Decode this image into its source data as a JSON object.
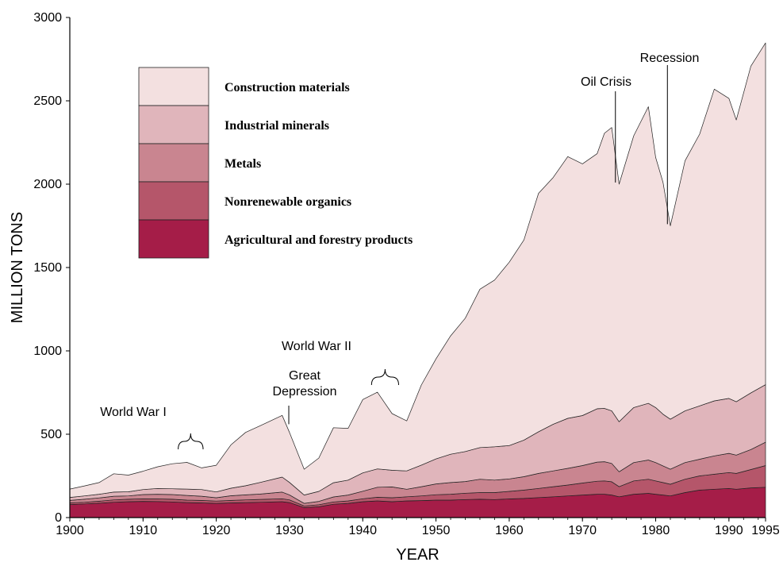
{
  "chart_data": {
    "type": "area",
    "stacked": true,
    "title": "",
    "xlabel": "YEAR",
    "ylabel": "MILLION TONS",
    "xlim": [
      1900,
      1995
    ],
    "ylim": [
      0,
      3000
    ],
    "xticks": [
      1900,
      1910,
      1920,
      1930,
      1940,
      1950,
      1960,
      1970,
      1980,
      1990,
      1995
    ],
    "yticks": [
      0,
      500,
      1000,
      1500,
      2000,
      2500,
      3000
    ],
    "grid": false,
    "legend_position": "top-left",
    "x": [
      1900,
      1902,
      1904,
      1906,
      1908,
      1910,
      1912,
      1914,
      1916,
      1918,
      1920,
      1922,
      1924,
      1926,
      1929,
      1930,
      1932,
      1934,
      1936,
      1938,
      1940,
      1942,
      1944,
      1946,
      1948,
      1950,
      1952,
      1954,
      1956,
      1958,
      1960,
      1962,
      1964,
      1966,
      1968,
      1970,
      1972,
      1973,
      1974,
      1975,
      1977,
      1979,
      1980,
      1981,
      1982,
      1984,
      1986,
      1988,
      1990,
      1991,
      1993,
      1995
    ],
    "series": [
      {
        "name": "Agricultural and forestry products",
        "color": "#a51d48",
        "values": [
          78,
          82,
          86,
          92,
          95,
          97,
          96,
          94,
          90,
          88,
          85,
          88,
          90,
          92,
          95,
          90,
          60,
          65,
          80,
          85,
          95,
          100,
          95,
          100,
          102,
          105,
          105,
          108,
          110,
          108,
          112,
          115,
          120,
          125,
          130,
          135,
          140,
          140,
          135,
          125,
          140,
          145,
          140,
          135,
          130,
          150,
          165,
          170,
          175,
          170,
          178,
          182
        ]
      },
      {
        "name": "Nonrenewable organics",
        "color": "#b5566a",
        "values": [
          10,
          10,
          12,
          14,
          15,
          16,
          16,
          16,
          15,
          15,
          14,
          15,
          16,
          17,
          18,
          16,
          10,
          12,
          14,
          15,
          18,
          22,
          24,
          25,
          28,
          32,
          35,
          38,
          40,
          42,
          45,
          50,
          55,
          60,
          65,
          72,
          78,
          80,
          80,
          60,
          80,
          85,
          80,
          75,
          70,
          80,
          85,
          90,
          95,
          95,
          110,
          130
        ]
      },
      {
        "name": "Metals",
        "color": "#c98590",
        "values": [
          15,
          18,
          20,
          22,
          20,
          25,
          28,
          28,
          28,
          25,
          20,
          28,
          30,
          32,
          40,
          30,
          15,
          20,
          30,
          35,
          45,
          60,
          65,
          45,
          55,
          65,
          70,
          70,
          80,
          75,
          75,
          80,
          90,
          95,
          100,
          105,
          115,
          115,
          110,
          90,
          110,
          115,
          110,
          100,
          90,
          100,
          100,
          110,
          115,
          110,
          120,
          140
        ]
      },
      {
        "name": "Industrial minerals",
        "color": "#e0b5bb",
        "values": [
          18,
          20,
          22,
          25,
          25,
          30,
          35,
          35,
          38,
          40,
          35,
          45,
          55,
          70,
          90,
          75,
          50,
          60,
          85,
          90,
          110,
          110,
          100,
          110,
          130,
          150,
          170,
          180,
          190,
          200,
          200,
          220,
          250,
          280,
          300,
          300,
          320,
          320,
          315,
          300,
          330,
          340,
          330,
          310,
          300,
          310,
          320,
          330,
          330,
          320,
          340,
          345
        ]
      },
      {
        "name": "Construction materials",
        "color": "#f3e0e0",
        "values": [
          50,
          60,
          70,
          110,
          100,
          110,
          130,
          150,
          160,
          130,
          160,
          260,
          320,
          340,
          370,
          300,
          155,
          200,
          330,
          310,
          440,
          460,
          340,
          300,
          480,
          600,
          710,
          800,
          950,
          1000,
          1100,
          1200,
          1430,
          1480,
          1570,
          1510,
          1530,
          1650,
          1700,
          1425,
          1630,
          1780,
          1500,
          1390,
          1160,
          1500,
          1630,
          1870,
          1800,
          1690,
          1960,
          2050
        ]
      }
    ],
    "annotations": [
      {
        "text": "World War I",
        "lines": [
          "World War I"
        ]
      },
      {
        "text": "Great Depression",
        "lines": [
          "Great",
          "Depression"
        ]
      },
      {
        "text": "World War II",
        "lines": [
          "World War II"
        ]
      },
      {
        "text": "Oil Crisis",
        "lines": [
          "Oil Crisis"
        ]
      },
      {
        "text": "Recession",
        "lines": [
          "Recession"
        ]
      }
    ]
  }
}
